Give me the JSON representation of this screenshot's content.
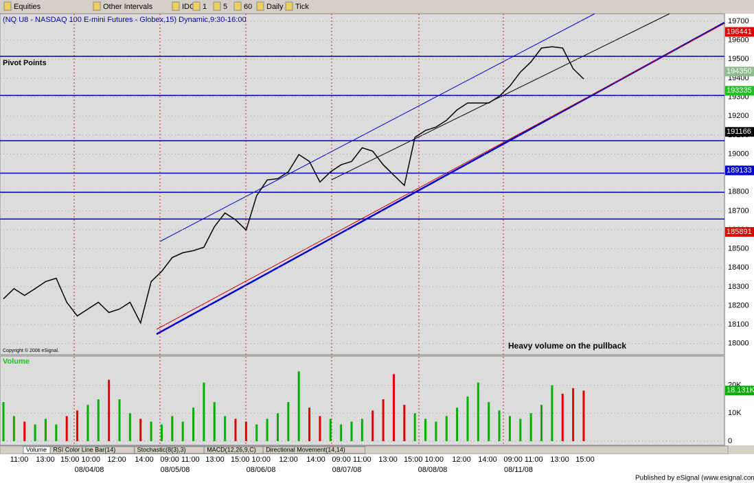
{
  "toolbar": {
    "items": [
      "Equities",
      "Other Intervals",
      "IDC",
      "1",
      "5",
      "60",
      "Daily",
      "Tick"
    ]
  },
  "tabs": [
    "Volume",
    "RSI Color Line Bar(14)",
    "Stochastic(8(3),3)",
    "MACD(12,26,9,C)",
    "Directional Movement(14,14)"
  ],
  "footer": "Published by eSignal (www.esignal.com)",
  "x_labels": [
    "11:00",
    "13:00",
    "15:00 10:00",
    "12:00",
    "14:00",
    "09:00 11:00",
    "13:00",
    "15:00 10:00",
    "12:00",
    "14:00",
    "09:00 11:00",
    "13:00",
    "15:00 10:00",
    "12:00",
    "14:00",
    "09:00 11:00",
    "13:00",
    "15:00"
  ],
  "dates": [
    "08/04/08",
    "08/05/08",
    "08/06/08",
    "08/07/08",
    "08/08/08",
    "08/11/08"
  ],
  "chart_data": [
    {
      "type": "line",
      "title": "(NQ U8 - NASDAQ 100 E-mini Futures - Globex,15) Dynamic,9:30-16:00",
      "subtitle": "Pivot Points",
      "annotation": "Heavy volume on the pullback",
      "copyright": "Copyright © 2006 eSignal.",
      "color": "#000000",
      "values": [
        18236,
        18290,
        18254,
        18290,
        18327,
        18345,
        18218,
        18146,
        18182,
        18218,
        18164,
        18182,
        18218,
        18109,
        18327,
        18381,
        18454,
        18479,
        18490,
        18508,
        18617,
        18689,
        18653,
        18599,
        18780,
        18863,
        18870,
        18906,
        18997,
        18961,
        18852,
        18906,
        18943,
        18961,
        19033,
        19015,
        18943,
        18888,
        18834,
        19088,
        19124,
        19142,
        19178,
        19233,
        19269,
        19269,
        19269,
        19305,
        19359,
        19432,
        19486,
        19559,
        19566,
        19559,
        19450,
        19396
      ],
      "pivot_levels": [
        19515,
        19309,
        19070,
        18899,
        18798,
        18657
      ],
      "pivot_color": "#0000cc",
      "price_markers": [
        {
          "value": 19644.1,
          "label": "196441",
          "color": "#e00000"
        },
        {
          "value": 19435.0,
          "label": "194350",
          "color": "#8fbc8f"
        },
        {
          "value": 19333.5,
          "label": "193335",
          "color": "#20c020"
        },
        {
          "value": 19116.6,
          "label": "191166",
          "color": "#000000"
        },
        {
          "value": 18913.3,
          "label": "189133",
          "color": "#0000cc"
        },
        {
          "value": 18589.1,
          "label": "185891",
          "color": "#e00000"
        }
      ],
      "ylim": [
        17945,
        19740
      ],
      "yticks": [
        18000,
        18100,
        18200,
        18300,
        18400,
        18500,
        18600,
        18700,
        18800,
        18900,
        19000,
        19100,
        19200,
        19300,
        19400,
        19500,
        19600,
        19700
      ],
      "grid": true
    },
    {
      "type": "bar",
      "title": "Volume",
      "values": [
        14000,
        9000,
        7000,
        6000,
        8000,
        6000,
        9000,
        11000,
        13000,
        15000,
        22000,
        15000,
        10000,
        8000,
        7000,
        6000,
        9000,
        7000,
        12000,
        21000,
        14000,
        9000,
        8000,
        7000,
        6000,
        8000,
        10000,
        14000,
        25000,
        12000,
        9000,
        8000,
        6000,
        7000,
        8000,
        11000,
        15000,
        24000,
        13000,
        10000,
        8000,
        7000,
        9000,
        12000,
        16000,
        21000,
        14000,
        11000,
        9000,
        8000,
        10000,
        13000,
        20000,
        17000,
        19000,
        18131
      ],
      "up_color": "#00b000",
      "down_color": "#e00000",
      "last_marker": {
        "value": 18131,
        "label": "18.131K"
      },
      "ylim": [
        0,
        30000
      ],
      "yticks": [
        0,
        {
          "value": 10000,
          "label": "10K"
        },
        {
          "value": 20000,
          "label": "20K"
        }
      ],
      "grid": true
    }
  ]
}
